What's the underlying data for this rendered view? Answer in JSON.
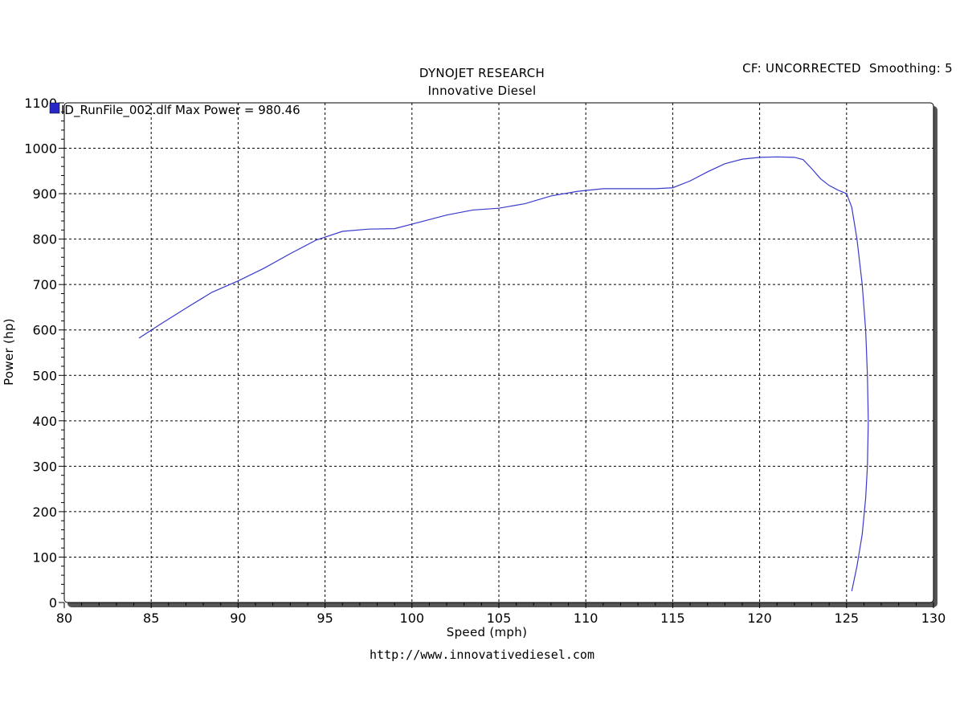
{
  "header": {
    "title": "DYNOJET RESEARCH",
    "subtitle": "Innovative Diesel",
    "cf_info": "CF: UNCORRECTED  Smoothing: 5"
  },
  "footer": {
    "url": "http://www.innovativediesel.com"
  },
  "colors": {
    "series": "#3a3acc",
    "legend_marker": "#2828c8",
    "grid": "#000000"
  },
  "chart_data": {
    "type": "line",
    "title": "DYNOJET RESEARCH",
    "subtitle": "Innovative Diesel",
    "xlabel": "Speed (mph)",
    "ylabel": "Power (hp)",
    "xlim": [
      80,
      130
    ],
    "ylim": [
      0,
      1100
    ],
    "xticks": [
      80,
      85,
      90,
      95,
      100,
      105,
      110,
      115,
      120,
      125,
      130
    ],
    "yticks": [
      0,
      100,
      200,
      300,
      400,
      500,
      600,
      700,
      800,
      900,
      1000,
      1100
    ],
    "grid": true,
    "legend_position": "top-left",
    "series": [
      {
        "name": "ID_RunFile_002.dlf Max Power = 980.46",
        "x": [
          84.3,
          85.5,
          87,
          88.5,
          90,
          91.5,
          93,
          94.5,
          96,
          97.5,
          99,
          100.5,
          102,
          103.5,
          105,
          106.5,
          108,
          109.5,
          111,
          112.5,
          114,
          115,
          116,
          117,
          118,
          119,
          120,
          121,
          122,
          122.5,
          123,
          123.5,
          124,
          124.5,
          125,
          125.3,
          125.6,
          125.9,
          126.1,
          126.2,
          126.25,
          126.2,
          126.1,
          125.9,
          125.6,
          125.3
        ],
        "y": [
          582,
          612,
          648,
          683,
          708,
          736,
          768,
          798,
          817,
          822,
          823,
          838,
          853,
          864,
          868,
          878,
          895,
          905,
          911,
          911,
          911,
          913,
          928,
          948,
          966,
          976,
          980,
          981,
          980,
          975,
          955,
          933,
          918,
          908,
          900,
          870,
          800,
          700,
          600,
          500,
          400,
          300,
          230,
          150,
          80,
          25
        ]
      }
    ]
  }
}
